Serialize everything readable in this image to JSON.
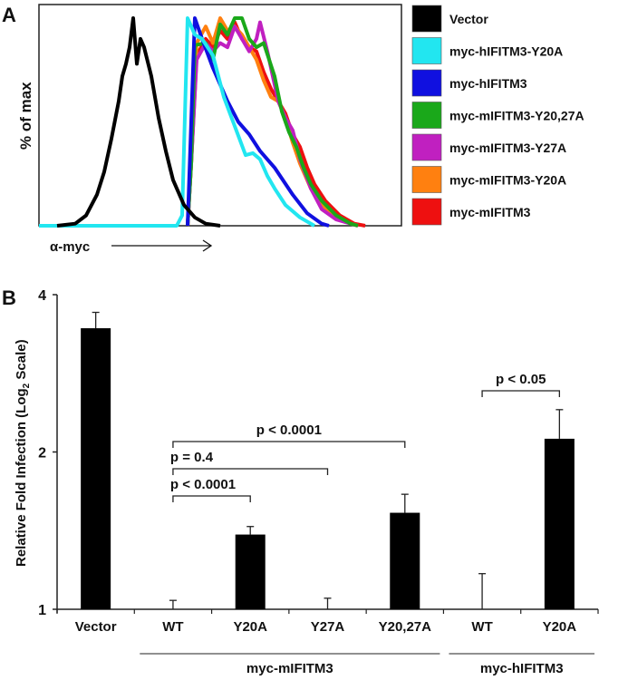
{
  "chart_data": [
    {
      "panel": "A",
      "type": "line",
      "title": "",
      "xlabel": "α-myc",
      "ylabel": "% of max",
      "xlim": [
        0,
        100
      ],
      "ylim": [
        0,
        100
      ],
      "grid": false,
      "legend_position": "right",
      "series": [
        {
          "name": "Vector",
          "color": "#000000",
          "points": [
            [
              5,
              0
            ],
            [
              10,
              1
            ],
            [
              13,
              5
            ],
            [
              16,
              15
            ],
            [
              18,
              26
            ],
            [
              20,
              42
            ],
            [
              22,
              60
            ],
            [
              23,
              72
            ],
            [
              24,
              78
            ],
            [
              25,
              86
            ],
            [
              26,
              100
            ],
            [
              27,
              78
            ],
            [
              28,
              90
            ],
            [
              29,
              86
            ],
            [
              31,
              72
            ],
            [
              33,
              52
            ],
            [
              35,
              36
            ],
            [
              37,
              22
            ],
            [
              40,
              10
            ],
            [
              43,
              4
            ],
            [
              46,
              1
            ],
            [
              50,
              0
            ]
          ]
        },
        {
          "name": "myc-hIFITM3-Y20A",
          "color": "#22e6f0",
          "points": [
            [
              0,
              0
            ],
            [
              38,
              0
            ],
            [
              39.5,
              5
            ],
            [
              41,
              100
            ],
            [
              43,
              92
            ],
            [
              45,
              90
            ],
            [
              48,
              82
            ],
            [
              51,
              62
            ],
            [
              54,
              48
            ],
            [
              57,
              34
            ],
            [
              59,
              35
            ],
            [
              61,
              32
            ],
            [
              63,
              24
            ],
            [
              65,
              18
            ],
            [
              68,
              10
            ],
            [
              72,
              4
            ],
            [
              76,
              0
            ]
          ]
        },
        {
          "name": "myc-hIFITM3",
          "color": "#1010e0",
          "points": [
            [
              41,
              0
            ],
            [
              42,
              50
            ],
            [
              43,
              100
            ],
            [
              45,
              90
            ],
            [
              48,
              76
            ],
            [
              52,
              60
            ],
            [
              55,
              50
            ],
            [
              58,
              44
            ],
            [
              61,
              36
            ],
            [
              65,
              28
            ],
            [
              70,
              15
            ],
            [
              74,
              6
            ],
            [
              78,
              1
            ],
            [
              80,
              0
            ]
          ]
        },
        {
          "name": "myc-mIFITM3-Y20,27A",
          "color": "#1aa81a",
          "points": [
            [
              41,
              0
            ],
            [
              42,
              30
            ],
            [
              43,
              87
            ],
            [
              46,
              88
            ],
            [
              48,
              80
            ],
            [
              50,
              97
            ],
            [
              52,
              92
            ],
            [
              54,
              100
            ],
            [
              56,
              100
            ],
            [
              58,
              90
            ],
            [
              60,
              86
            ],
            [
              62,
              88
            ],
            [
              65,
              72
            ],
            [
              67,
              55
            ],
            [
              69,
              45
            ],
            [
              71,
              38
            ],
            [
              73,
              28
            ],
            [
              75,
              20
            ],
            [
              78,
              12
            ],
            [
              82,
              5
            ],
            [
              86,
              1
            ],
            [
              88,
              0
            ]
          ]
        },
        {
          "name": "myc-mIFITM3-Y27A",
          "color": "#c020c0",
          "points": [
            [
              41,
              0
            ],
            [
              42,
              30
            ],
            [
              43.5,
              80
            ],
            [
              46,
              88
            ],
            [
              48,
              84
            ],
            [
              50,
              88
            ],
            [
              52,
              86
            ],
            [
              54,
              96
            ],
            [
              56,
              90
            ],
            [
              58,
              84
            ],
            [
              60,
              90
            ],
            [
              61,
              98
            ],
            [
              63,
              84
            ],
            [
              66,
              60
            ],
            [
              68,
              52
            ],
            [
              70,
              46
            ],
            [
              72,
              32
            ],
            [
              75,
              18
            ],
            [
              78,
              8
            ],
            [
              82,
              3
            ],
            [
              86,
              1
            ],
            [
              88,
              0
            ]
          ]
        },
        {
          "name": "myc-mIFITM3-Y20A",
          "color": "#ff8010",
          "points": [
            [
              41,
              0
            ],
            [
              42,
              30
            ],
            [
              43.5,
              88
            ],
            [
              46,
              96
            ],
            [
              48,
              88
            ],
            [
              50,
              100
            ],
            [
              52,
              94
            ],
            [
              54,
              96
            ],
            [
              56,
              92
            ],
            [
              58,
              86
            ],
            [
              60,
              80
            ],
            [
              62,
              70
            ],
            [
              64,
              62
            ],
            [
              66,
              60
            ],
            [
              68,
              52
            ],
            [
              70,
              40
            ],
            [
              72,
              30
            ],
            [
              75,
              18
            ],
            [
              78,
              10
            ],
            [
              82,
              4
            ],
            [
              86,
              1
            ],
            [
              88,
              0
            ]
          ]
        },
        {
          "name": "myc-mIFITM3",
          "color": "#ee1010",
          "points": [
            [
              41,
              0
            ],
            [
              42,
              30
            ],
            [
              43.5,
              82
            ],
            [
              46,
              90
            ],
            [
              48,
              86
            ],
            [
              50,
              94
            ],
            [
              52,
              90
            ],
            [
              54,
              98
            ],
            [
              56,
              90
            ],
            [
              58,
              86
            ],
            [
              60,
              84
            ],
            [
              62,
              74
            ],
            [
              64,
              66
            ],
            [
              66,
              60
            ],
            [
              68,
              54
            ],
            [
              70,
              44
            ],
            [
              72,
              38
            ],
            [
              74,
              28
            ],
            [
              76,
              20
            ],
            [
              79,
              12
            ],
            [
              83,
              5
            ],
            [
              87,
              1
            ],
            [
              90,
              0
            ]
          ]
        }
      ]
    },
    {
      "panel": "B",
      "type": "bar",
      "ylabel": "Relative Fold Infection (Log",
      "ylabel_sub": "2",
      "ylabel_end": " Scale)",
      "yscale": "log2",
      "ylim": [
        1,
        4
      ],
      "yticks": [
        "1",
        "2",
        "4"
      ],
      "categories": [
        "Vector",
        "WT",
        "Y20A",
        "Y27A",
        "Y20,27A",
        "WT",
        "Y20A"
      ],
      "values": [
        3.45,
        1.0,
        1.39,
        1.0,
        1.53,
        1.0,
        2.12
      ],
      "error_upper": [
        3.7,
        1.04,
        1.44,
        1.05,
        1.66,
        1.17,
        2.41
      ],
      "bar_color": "#000000",
      "groups": [
        {
          "label": "myc-mIFITM3",
          "from": 1,
          "to": 4
        },
        {
          "label": "myc-hIFITM3",
          "from": 5,
          "to": 6
        }
      ],
      "comparisons": [
        {
          "label": "p < 0.0001",
          "from": 1,
          "to": 2,
          "level": 1
        },
        {
          "label": "p = 0.4",
          "from": 1,
          "to": 3,
          "level": 2
        },
        {
          "label": "p < 0.0001",
          "from": 1,
          "to": 4,
          "level": 3
        },
        {
          "label": "p < 0.05",
          "from": 5,
          "to": 6,
          "level": 4
        }
      ]
    }
  ],
  "panel_labels": {
    "a": "A",
    "b": "B"
  }
}
